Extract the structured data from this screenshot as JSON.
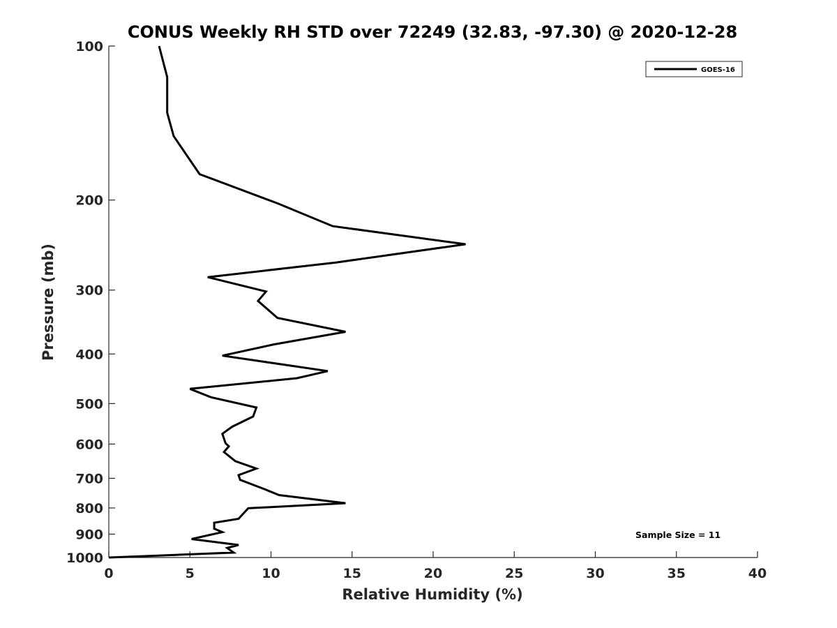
{
  "chart_data": {
    "type": "line",
    "title": "CONUS Weekly RH STD over 72249 (32.83, -97.30) @ 2020-12-28",
    "xlabel": "Relative Humidity (%)",
    "ylabel": "Pressure (mb)",
    "xlim": [
      0,
      40
    ],
    "ylim": [
      1000,
      100
    ],
    "y_scale": "log",
    "y_reversed": true,
    "x_ticks": [
      0,
      5,
      10,
      15,
      20,
      25,
      30,
      35,
      40
    ],
    "y_ticks": [
      100,
      200,
      300,
      400,
      500,
      600,
      700,
      800,
      900,
      1000
    ],
    "grid": false,
    "legend_position": "top-right",
    "series": [
      {
        "name": "GOES-16",
        "color": "#000000",
        "points": [
          [
            3.1,
            100
          ],
          [
            3.6,
            115
          ],
          [
            3.6,
            135
          ],
          [
            4.0,
            150
          ],
          [
            5.6,
            178
          ],
          [
            10.4,
            203
          ],
          [
            13.8,
            225
          ],
          [
            22.0,
            244
          ],
          [
            14.0,
            265
          ],
          [
            6.1,
            283
          ],
          [
            9.7,
            302
          ],
          [
            9.2,
            315
          ],
          [
            10.4,
            340
          ],
          [
            14.6,
            362
          ],
          [
            10.2,
            383
          ],
          [
            7.0,
            403
          ],
          [
            13.5,
            432
          ],
          [
            11.6,
            446
          ],
          [
            5.0,
            468
          ],
          [
            6.3,
            486
          ],
          [
            9.1,
            509
          ],
          [
            8.9,
            530
          ],
          [
            7.6,
            555
          ],
          [
            7.0,
            573
          ],
          [
            7.2,
            598
          ],
          [
            7.4,
            606
          ],
          [
            7.1,
            622
          ],
          [
            7.8,
            648
          ],
          [
            9.1,
            670
          ],
          [
            8.0,
            690
          ],
          [
            8.1,
            705
          ],
          [
            9.6,
            735
          ],
          [
            10.5,
            755
          ],
          [
            14.6,
            783
          ],
          [
            8.6,
            801
          ],
          [
            8.0,
            840
          ],
          [
            6.5,
            855
          ],
          [
            6.5,
            878
          ],
          [
            7.0,
            892
          ],
          [
            5.1,
            920
          ],
          [
            8.0,
            945
          ],
          [
            7.3,
            958
          ],
          [
            7.7,
            978
          ],
          [
            0,
            1000
          ]
        ]
      }
    ],
    "annotations": [
      "Sample Size = 11"
    ]
  }
}
